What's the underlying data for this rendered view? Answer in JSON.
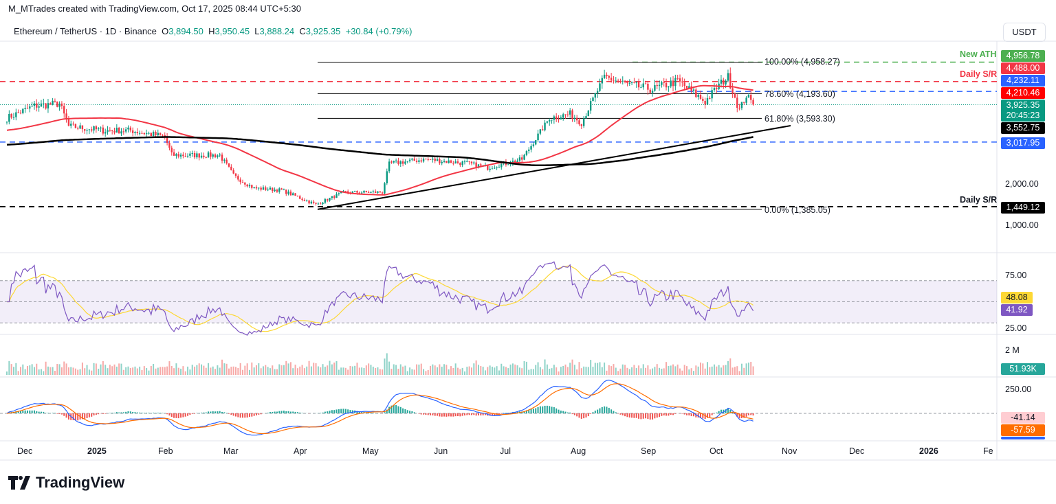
{
  "credit": "M_MTrades created with TradingView.com, Oct 17, 2025 08:44 UTC+5:30",
  "legend": {
    "symbol": "Ethereum / TetherUS · 1D · Binance",
    "o_label": "O",
    "o": "3,894.50",
    "h_label": "H",
    "h": "3,950.45",
    "l_label": "L",
    "l": "3,888.24",
    "c_label": "C",
    "c": "3,925.35",
    "change": "+30.84 (+0.79%)"
  },
  "currency": "USDT",
  "annotations": {
    "ath": "New ATH",
    "sr1": "Daily S/R",
    "sr2": "Daily S/R",
    "fib100": "100.00% (4,958.27)",
    "fib786": "78.60% (4,193.60)",
    "fib618": "61.80% (3,593.30)",
    "fib0": "0.00% (1,385.05)"
  },
  "badges": {
    "ath": "4,956.78",
    "sr_red": "4,488.00",
    "blue1": "4,232.11",
    "ma50": "4,210.46",
    "price": "3,925.35",
    "timer": "20:45:23",
    "ma200": "3,552.75",
    "blue2": "3,017.95",
    "sr_black": "1,449.12",
    "rsi_ma": "48.08",
    "rsi": "41.92",
    "volume": "51.93K",
    "macd_hist": "-41.14",
    "macd_signal": "-57.59"
  },
  "axis": {
    "price_ticks": [
      "2,000.00",
      "1,000.00"
    ],
    "rsi_ticks": [
      "75.00",
      "25.00"
    ],
    "vol_ticks": [
      "2 M"
    ],
    "macd_ticks": [
      "250.00"
    ]
  },
  "time_labels": [
    "Dec",
    "2025",
    "Feb",
    "Mar",
    "Apr",
    "May",
    "Jun",
    "Jul",
    "Aug",
    "Sep",
    "Oct",
    "Nov",
    "Dec",
    "2026",
    "Fe"
  ],
  "brand": "TradingView",
  "colors": {
    "up": "#089981",
    "down": "#f23645",
    "ma50": "#f23645",
    "ma200": "#000000",
    "rsi": "#7e57c2",
    "rsi_ma": "#fdd835",
    "macd": "#2962ff",
    "signal": "#ff6d00"
  },
  "chart_data": {
    "type": "candlestick",
    "title": "Ethereum / TetherUS 1D",
    "days": 327,
    "close_keypoints": [
      [
        0,
        3600
      ],
      [
        12,
        3900
      ],
      [
        23,
        3950
      ],
      [
        27,
        3400
      ],
      [
        42,
        3300
      ],
      [
        54,
        3300
      ],
      [
        69,
        3150
      ],
      [
        72,
        2700
      ],
      [
        93,
        2700
      ],
      [
        99,
        2200
      ],
      [
        108,
        1900
      ],
      [
        120,
        1850
      ],
      [
        135,
        1500
      ],
      [
        147,
        1800
      ],
      [
        164,
        1800
      ],
      [
        167,
        2500
      ],
      [
        183,
        2600
      ],
      [
        201,
        2500
      ],
      [
        210,
        2400
      ],
      [
        225,
        2600
      ],
      [
        237,
        3600
      ],
      [
        246,
        3700
      ],
      [
        251,
        3500
      ],
      [
        261,
        4600
      ],
      [
        272,
        4400
      ],
      [
        282,
        4300
      ],
      [
        293,
        4500
      ],
      [
        305,
        4000
      ],
      [
        311,
        4400
      ],
      [
        315,
        4600
      ],
      [
        320,
        3800
      ],
      [
        323,
        4150
      ],
      [
        326,
        3925
      ]
    ],
    "levels": {
      "ath": 4958.27,
      "daily_sr_red": 4488.0,
      "blue_upper": 4232.11,
      "blue_lower": 3017.95,
      "daily_sr_black": 1449.12
    },
    "fib": {
      "100": 4958.27,
      "78.6": 4193.6,
      "61.8": 3593.3,
      "0": 1385.05
    },
    "price_range": [
      1000,
      5000
    ],
    "rsi_range": [
      25,
      75
    ],
    "indicators": [
      "MA50",
      "MA200",
      "RSI 14",
      "Volume",
      "MACD"
    ]
  }
}
